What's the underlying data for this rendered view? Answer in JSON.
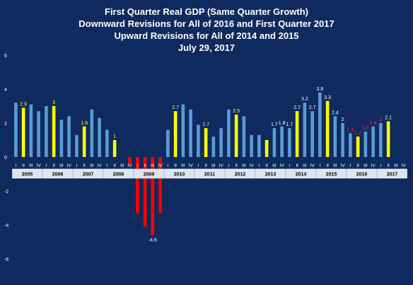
{
  "chart_data": {
    "type": "bar",
    "title_lines": [
      "First Quarter Real GDP (Same Quarter Growth)",
      "Downward Revisions for All of 2016 and First Quarter 2017",
      "Upward Revisions for All of 2014 and 2015",
      "July 29, 2017"
    ],
    "xlabel": "",
    "ylabel": "",
    "ylim": [
      -6,
      6
    ],
    "yticks": [
      6,
      4,
      2,
      0,
      -2,
      -4,
      -6
    ],
    "grid": false,
    "legend": "none",
    "quarter_labels": [
      "I",
      "II",
      "III",
      "IV"
    ],
    "years": [
      "2005",
      "2006",
      "2007",
      "2008",
      "2009",
      "2010",
      "2011",
      "2012",
      "2013",
      "2014",
      "2015",
      "2016",
      "2017"
    ],
    "values": [
      3.2,
      2.9,
      3.1,
      2.7,
      3.0,
      3.0,
      2.2,
      2.4,
      1.3,
      1.8,
      2.8,
      2.3,
      1.6,
      1.0,
      0.0,
      -0.4,
      -3.3,
      -4.1,
      -4.6,
      -3.3,
      1.6,
      2.7,
      3.1,
      2.8,
      1.9,
      1.7,
      1.2,
      1.7,
      2.8,
      2.5,
      2.4,
      1.3,
      1.3,
      1.0,
      1.7,
      1.8,
      1.7,
      2.7,
      3.2,
      2.7,
      3.8,
      3.3,
      2.4,
      2.0,
      1.4,
      1.2,
      1.5,
      1.8,
      2.0,
      2.1,
      null,
      null
    ],
    "data_labels": [
      {
        "index": 1,
        "text": "2.9",
        "color": "#ffff33"
      },
      {
        "index": 5,
        "text": "3",
        "color": "#ffff33"
      },
      {
        "index": 9,
        "text": "1.8",
        "color": "#ffff33"
      },
      {
        "index": 13,
        "text": "1",
        "color": "#ffff33"
      },
      {
        "index": 18,
        "text": "-4.6",
        "color": "#ffffff"
      },
      {
        "index": 21,
        "text": "2.7",
        "color": "#ffff33"
      },
      {
        "index": 25,
        "text": "1.7",
        "color": "#ffff33"
      },
      {
        "index": 29,
        "text": "2.5",
        "color": "#ffff33"
      },
      {
        "index": 34,
        "text": "1.7",
        "color": "#ffffff"
      },
      {
        "index": 35,
        "text": "1.8",
        "color": "#ffffff"
      },
      {
        "index": 36,
        "text": "1.7",
        "color": "#ffffff"
      },
      {
        "index": 37,
        "text": "2.7",
        "color": "#ffffff"
      },
      {
        "index": 38,
        "text": "3.2",
        "color": "#ffffff"
      },
      {
        "index": 39,
        "text": "2.7",
        "color": "#ffffff"
      },
      {
        "index": 40,
        "text": "3.8",
        "color": "#ffffff"
      },
      {
        "index": 41,
        "text": "3.3",
        "color": "#ffffff"
      },
      {
        "index": 42,
        "text": "2.4",
        "color": "#ffffff"
      },
      {
        "index": 43,
        "text": "2",
        "color": "#ffffff"
      },
      {
        "index": 44,
        "text": "1.4",
        "color": "#ff3030"
      },
      {
        "index": 45,
        "text": "1.2",
        "color": "#ff3030"
      },
      {
        "index": 46,
        "text": "1.5",
        "color": "#ff3030"
      },
      {
        "index": 47,
        "text": "1.8",
        "color": "#ff3030"
      },
      {
        "index": 48,
        "text": "2",
        "color": "#ff3030"
      },
      {
        "index": 49,
        "text": "2.1",
        "color": "#ffffff"
      }
    ],
    "colors": {
      "background": "#0f2a5e",
      "bar_default": "#5b9bd5",
      "bar_highlight": "#ffff00",
      "bar_negative": "#ff0000",
      "axis_text": "#ffffff",
      "year_box": "#dce6f1",
      "year_text": "#000000"
    },
    "highlight_indices": [
      1,
      5,
      9,
      13,
      21,
      25,
      29,
      33,
      37,
      41,
      45,
      49
    ],
    "negative_indices": [
      14,
      15,
      16,
      17,
      18,
      19
    ]
  }
}
